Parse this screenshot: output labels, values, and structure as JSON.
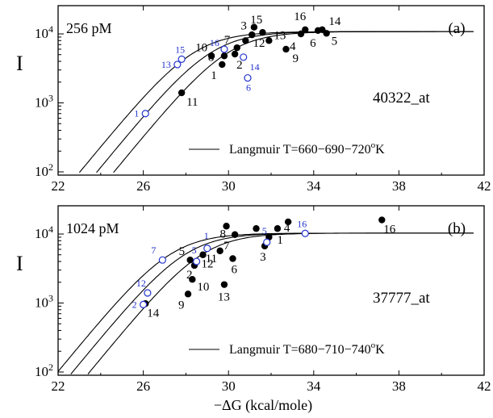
{
  "chart_data": [
    {
      "type": "scatter",
      "panel": "(a)",
      "concentration": "256 pM",
      "probe_set": "40322_at",
      "ylabel": "I",
      "xlabel": "",
      "xlim": [
        22,
        42
      ],
      "ylim": [
        100,
        10000
      ],
      "yscale": "log",
      "x_ticks": [
        "22",
        "26",
        "30",
        "34",
        "38",
        "42"
      ],
      "y_ticks": [
        {
          "base": "10",
          "exp": "2",
          "v": 100
        },
        {
          "base": "10",
          "exp": "3",
          "v": 1000
        },
        {
          "base": "10",
          "exp": "4",
          "v": 10000
        }
      ],
      "legend": {
        "text": "Langmuir T=660−690−720",
        "unit": "o",
        "unit_after": "K",
        "position": "bottom-right"
      },
      "curves": {
        "midpoints": [
          28.4,
          29.2,
          30.0
        ],
        "saturation": 10800,
        "width": 1.15
      },
      "points_filled": [
        {
          "x": 27.8,
          "y": 1400,
          "label": "11"
        },
        {
          "x": 29.2,
          "y": 4800,
          "label": "10"
        },
        {
          "x": 29.7,
          "y": 3600,
          "label": "1"
        },
        {
          "x": 29.8,
          "y": 4800,
          "label": "8"
        },
        {
          "x": 30.3,
          "y": 5100,
          "label": "2"
        },
        {
          "x": 30.4,
          "y": 6300,
          "label": "7"
        },
        {
          "x": 30.8,
          "y": 8000,
          "label": "3"
        },
        {
          "x": 31.1,
          "y": 9700,
          "label": "15"
        },
        {
          "x": 31.2,
          "y": 12500,
          "label": ""
        },
        {
          "x": 31.9,
          "y": 8000,
          "label": "13"
        },
        {
          "x": 32.7,
          "y": 6000,
          "label": "9"
        },
        {
          "x": 33.4,
          "y": 10000,
          "label": "4"
        },
        {
          "x": 33.6,
          "y": 11500,
          "label": "16"
        },
        {
          "x": 34.2,
          "y": 11200,
          "label": "6"
        },
        {
          "x": 34.4,
          "y": 11500,
          "label": "14"
        },
        {
          "x": 34.6,
          "y": 10200,
          "label": "5"
        },
        {
          "x": 31.6,
          "y": 10500,
          "label": "12"
        }
      ],
      "points_open": [
        {
          "x": 26.1,
          "y": 700,
          "label": "1"
        },
        {
          "x": 27.6,
          "y": 3600,
          "label": "13"
        },
        {
          "x": 27.8,
          "y": 4300,
          "label": "15"
        },
        {
          "x": 29.8,
          "y": 6000,
          "label": "16"
        },
        {
          "x": 30.7,
          "y": 4600,
          "label": "14"
        },
        {
          "x": 30.9,
          "y": 2300,
          "label": "6"
        }
      ]
    },
    {
      "type": "scatter",
      "panel": "(b)",
      "concentration": "1024 pM",
      "probe_set": "37777_at",
      "ylabel": "I",
      "xlabel": "−ΔG (kcal/mole)",
      "xlim": [
        22,
        42
      ],
      "ylim": [
        100,
        10000
      ],
      "yscale": "log",
      "x_ticks": [
        "22",
        "26",
        "30",
        "34",
        "38",
        "42"
      ],
      "y_ticks": [
        {
          "base": "10",
          "exp": "2",
          "v": 100
        },
        {
          "base": "10",
          "exp": "3",
          "v": 1000
        },
        {
          "base": "10",
          "exp": "4",
          "v": 10000
        }
      ],
      "legend": {
        "text": "Langmuir T=680−710−740",
        "unit": "o",
        "unit_after": "K",
        "position": "bottom-right"
      },
      "curves": {
        "midpoints": [
          27.3,
          28.0,
          28.8
        ],
        "saturation": 10300,
        "width": 1.15
      },
      "points_filled": [
        {
          "x": 26.1,
          "y": 980,
          "label": "14"
        },
        {
          "x": 28.1,
          "y": 1350,
          "label": "9"
        },
        {
          "x": 28.3,
          "y": 2200,
          "label": "10"
        },
        {
          "x": 28.4,
          "y": 3500,
          "label": "2"
        },
        {
          "x": 28.2,
          "y": 4200,
          "label": "5"
        },
        {
          "x": 28.8,
          "y": 5000,
          "label": "12"
        },
        {
          "x": 29.6,
          "y": 5700,
          "label": "11"
        },
        {
          "x": 30.2,
          "y": 4400,
          "label": "6"
        },
        {
          "x": 29.9,
          "y": 13000,
          "label": "8"
        },
        {
          "x": 30.3,
          "y": 9800,
          "label": "7"
        },
        {
          "x": 31.3,
          "y": 12000,
          "label": ""
        },
        {
          "x": 31.7,
          "y": 6700,
          "label": "3"
        },
        {
          "x": 31.9,
          "y": 9000,
          "label": "1"
        },
        {
          "x": 32.3,
          "y": 12000,
          "label": "4"
        },
        {
          "x": 32.8,
          "y": 15000,
          "label": ""
        },
        {
          "x": 37.2,
          "y": 16000,
          "label": "16"
        },
        {
          "x": 29.8,
          "y": 1850,
          "label": "13"
        }
      ],
      "points_open": [
        {
          "x": 26.0,
          "y": 950,
          "label": "2"
        },
        {
          "x": 26.2,
          "y": 1400,
          "label": "12"
        },
        {
          "x": 26.9,
          "y": 4200,
          "label": "7"
        },
        {
          "x": 28.5,
          "y": 4000,
          "label": "5"
        },
        {
          "x": 29.0,
          "y": 6200,
          "label": "1"
        },
        {
          "x": 31.8,
          "y": 7600,
          "label": "5"
        },
        {
          "x": 33.6,
          "y": 10200,
          "label": "16"
        }
      ]
    }
  ]
}
